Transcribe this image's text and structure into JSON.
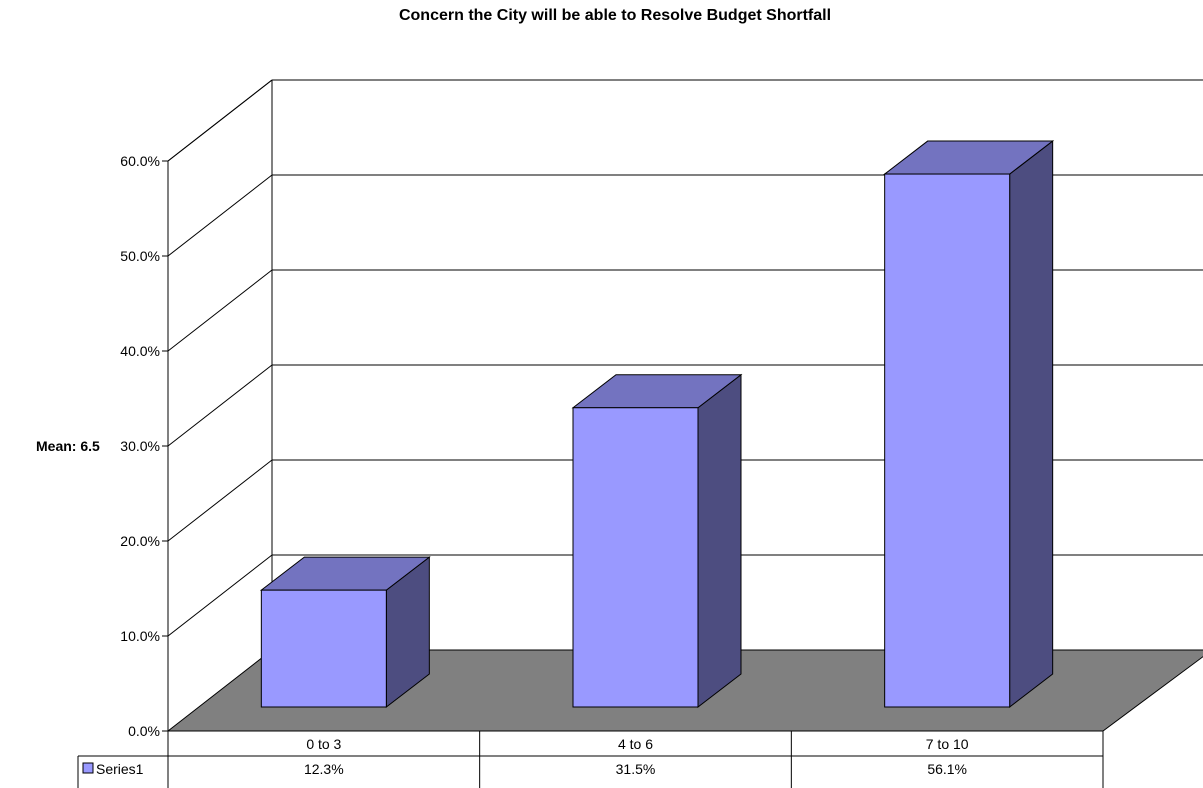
{
  "chart_data": {
    "type": "bar",
    "title": "Concern the City will be able to Resolve Budget Shortfall",
    "ylabel": "Mean: 6.5",
    "categories": [
      "0 to 3",
      "4 to 6",
      "7 to 10"
    ],
    "series": [
      {
        "name": "Series1",
        "values": [
          12.3,
          31.5,
          56.1
        ],
        "labels": [
          "12.3%",
          "31.5%",
          "56.1%"
        ]
      }
    ],
    "ylim": [
      0,
      60
    ],
    "yticks": [
      "0.0%",
      "10.0%",
      "20.0%",
      "30.0%",
      "40.0%",
      "50.0%",
      "60.0%"
    ],
    "grid": true,
    "legend": "data-table",
    "style": "3d",
    "colors": {
      "bar_front": "#9999FF",
      "bar_top": "#7373C0",
      "bar_side": "#4D4D80",
      "floor": "#808080",
      "grid": "#000000"
    }
  }
}
